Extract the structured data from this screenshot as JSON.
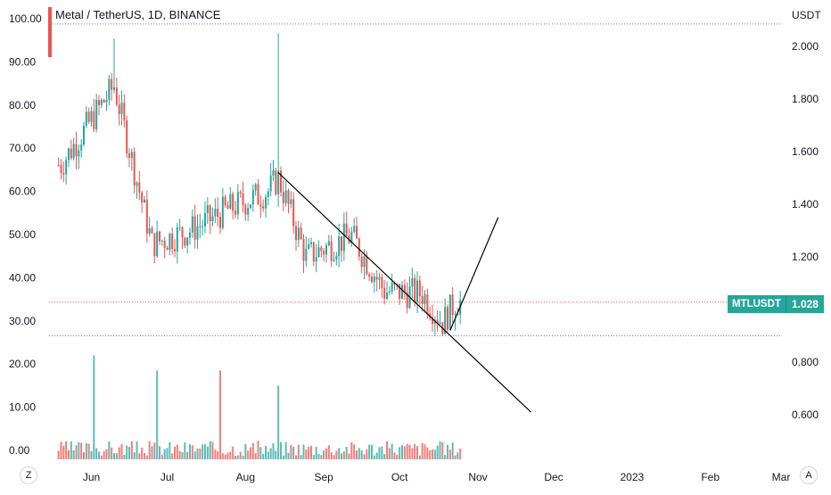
{
  "title": "Metal / TetherUS, 1D, BINANCE",
  "corner_left": "Z",
  "corner_right": "A",
  "price_badge": {
    "symbol": "MTLUSDT",
    "value": "1.028"
  },
  "colors": {
    "up": "#26a69a",
    "down": "#ef5350",
    "trendline": "#000000",
    "dotted": "#ef5350"
  },
  "chart_data": [
    {
      "type": "candlestick",
      "title": "Metal / TetherUS, 1D, BINANCE",
      "right_axis": {
        "label": "USDT",
        "ticks": [
          "2.000",
          "1.800",
          "1.600",
          "1.400",
          "1.200",
          "1.000",
          "0.800",
          "0.600"
        ],
        "ylim": [
          0.46,
          2.18
        ]
      },
      "left_axis": {
        "ticks": [
          "100.00",
          "90.00",
          "80.00",
          "70.00",
          "60.00",
          "50.00",
          "40.00",
          "30.00",
          "20.00",
          "10.00",
          "0.00"
        ]
      },
      "x_ticks": [
        "Jun",
        "Jul",
        "Aug",
        "Sep",
        "Oct",
        "Nov",
        "Dec",
        "2023",
        "Feb",
        "Mar"
      ],
      "last_price": 1.028,
      "grid": false,
      "approx_ohlc_anchors": [
        {
          "date": "2022-05-20",
          "close": 1.55
        },
        {
          "date": "2022-06-10",
          "high": 2.03,
          "close": 1.85
        },
        {
          "date": "2022-06-25",
          "close": 1.25
        },
        {
          "date": "2022-07-10",
          "close": 1.3
        },
        {
          "date": "2022-07-25",
          "close": 1.38
        },
        {
          "date": "2022-08-10",
          "close": 1.45
        },
        {
          "date": "2022-08-14",
          "high": 2.05,
          "close": 1.5
        },
        {
          "date": "2022-08-25",
          "close": 1.2
        },
        {
          "date": "2022-09-12",
          "close": 1.28
        },
        {
          "date": "2022-09-25",
          "close": 1.07
        },
        {
          "date": "2022-10-10",
          "close": 1.06
        },
        {
          "date": "2022-10-18",
          "low": 0.9,
          "close": 0.95
        },
        {
          "date": "2022-10-23",
          "low": 0.92,
          "close": 1.028
        }
      ],
      "annotations": {
        "dotted_levels": [
          2.085,
          1.028,
          0.9
        ],
        "trendline": [
          {
            "date": "2022-08-14",
            "value": 1.52
          },
          {
            "date": "2022-11-22",
            "value": 0.61
          }
        ],
        "projection_line": [
          {
            "date": "2022-10-21",
            "value": 0.92
          },
          {
            "date": "2022-11-09",
            "value": 1.35
          }
        ]
      }
    },
    {
      "type": "bar",
      "title": "Volume",
      "ylim": [
        0,
        30
      ],
      "approx_spikes": [
        {
          "date": "2022-06-02",
          "value": 24
        },
        {
          "date": "2022-06-27",
          "value": 20.5
        },
        {
          "date": "2022-07-22",
          "value": 20.5
        },
        {
          "date": "2022-08-14",
          "value": 17
        }
      ]
    }
  ]
}
